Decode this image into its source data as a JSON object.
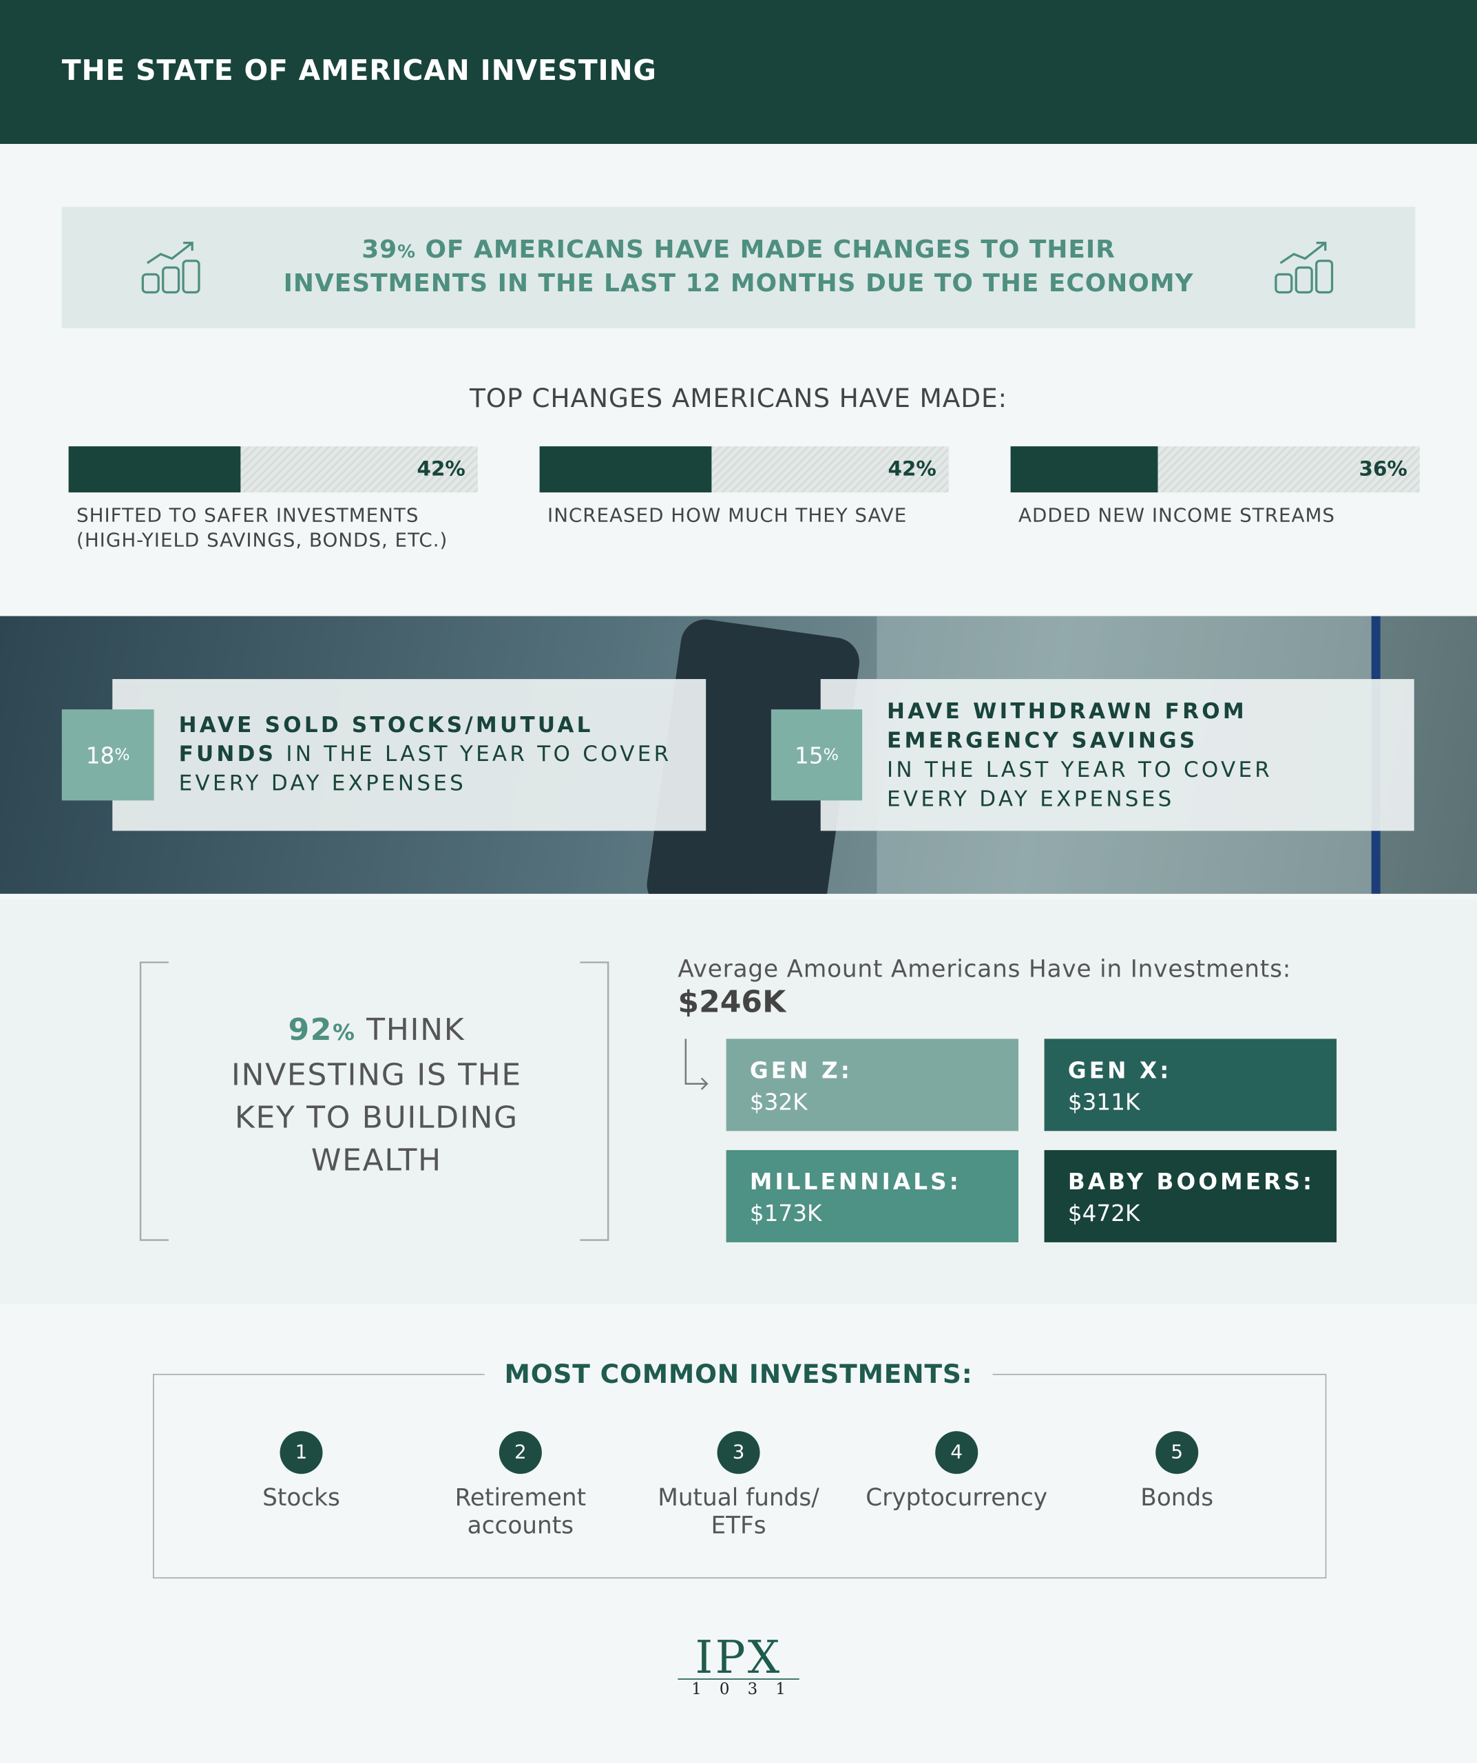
{
  "header": {
    "title": "THE STATE OF AMERICAN INVESTING"
  },
  "banner": {
    "number": "39",
    "unit": "%",
    "line1": " OF AMERICANS HAVE MADE CHANGES TO THEIR",
    "line2": "INVESTMENTS IN THE LAST 12 MONTHS DUE TO THE ECONOMY"
  },
  "chart_data": {
    "type": "bar",
    "title": "TOP CHANGES AMERICANS HAVE MADE:",
    "categories": [
      "SHIFTED TO SAFER INVESTMENTS (HIGH-YIELD SAVINGS, BONDS, ETC.)",
      "INCREASED HOW MUCH THEY SAVE",
      "ADDED NEW INCOME STREAMS"
    ],
    "values": [
      42,
      42,
      36
    ],
    "value_labels": [
      "42%",
      "42%",
      "36%"
    ],
    "xlim": [
      0,
      100
    ],
    "color": "#18443b"
  },
  "stats": [
    {
      "number": "18",
      "unit": "%",
      "bold": "HAVE SOLD STOCKS/MUTUAL FUNDS",
      "text": " IN THE LAST YEAR TO COVER EVERY DAY EXPENSES"
    },
    {
      "number": "15",
      "unit": "%",
      "bold": "HAVE WITHDRAWN FROM EMERGENCY SAVINGS",
      "text": "IN THE LAST YEAR TO COVER EVERY DAY EXPENSES"
    }
  ],
  "wealth": {
    "number": "92",
    "unit": "%",
    "text": " THINK INVESTING IS THE KEY TO BUILDING WEALTH"
  },
  "average": {
    "label": "Average Amount Americans Have in Investments:",
    "amount": "$246K",
    "generations": [
      {
        "name": "GEN Z:",
        "amount": "$32K"
      },
      {
        "name": "GEN X:",
        "amount": "$311K"
      },
      {
        "name": "MILLENNIALS:",
        "amount": "$173K"
      },
      {
        "name": "BABY BOOMERS:",
        "amount": "$472K"
      }
    ]
  },
  "investments": {
    "title": "MOST COMMON INVESTMENTS:",
    "items": [
      {
        "rank": "1",
        "name": "Stocks"
      },
      {
        "rank": "2",
        "name": "Retirement accounts"
      },
      {
        "rank": "3",
        "name": "Mutual funds/ ETFs"
      },
      {
        "rank": "4",
        "name": "Cryptocurrency"
      },
      {
        "rank": "5",
        "name": "Bonds"
      }
    ]
  },
  "logo": {
    "name": "IPX",
    "number": "1031"
  }
}
